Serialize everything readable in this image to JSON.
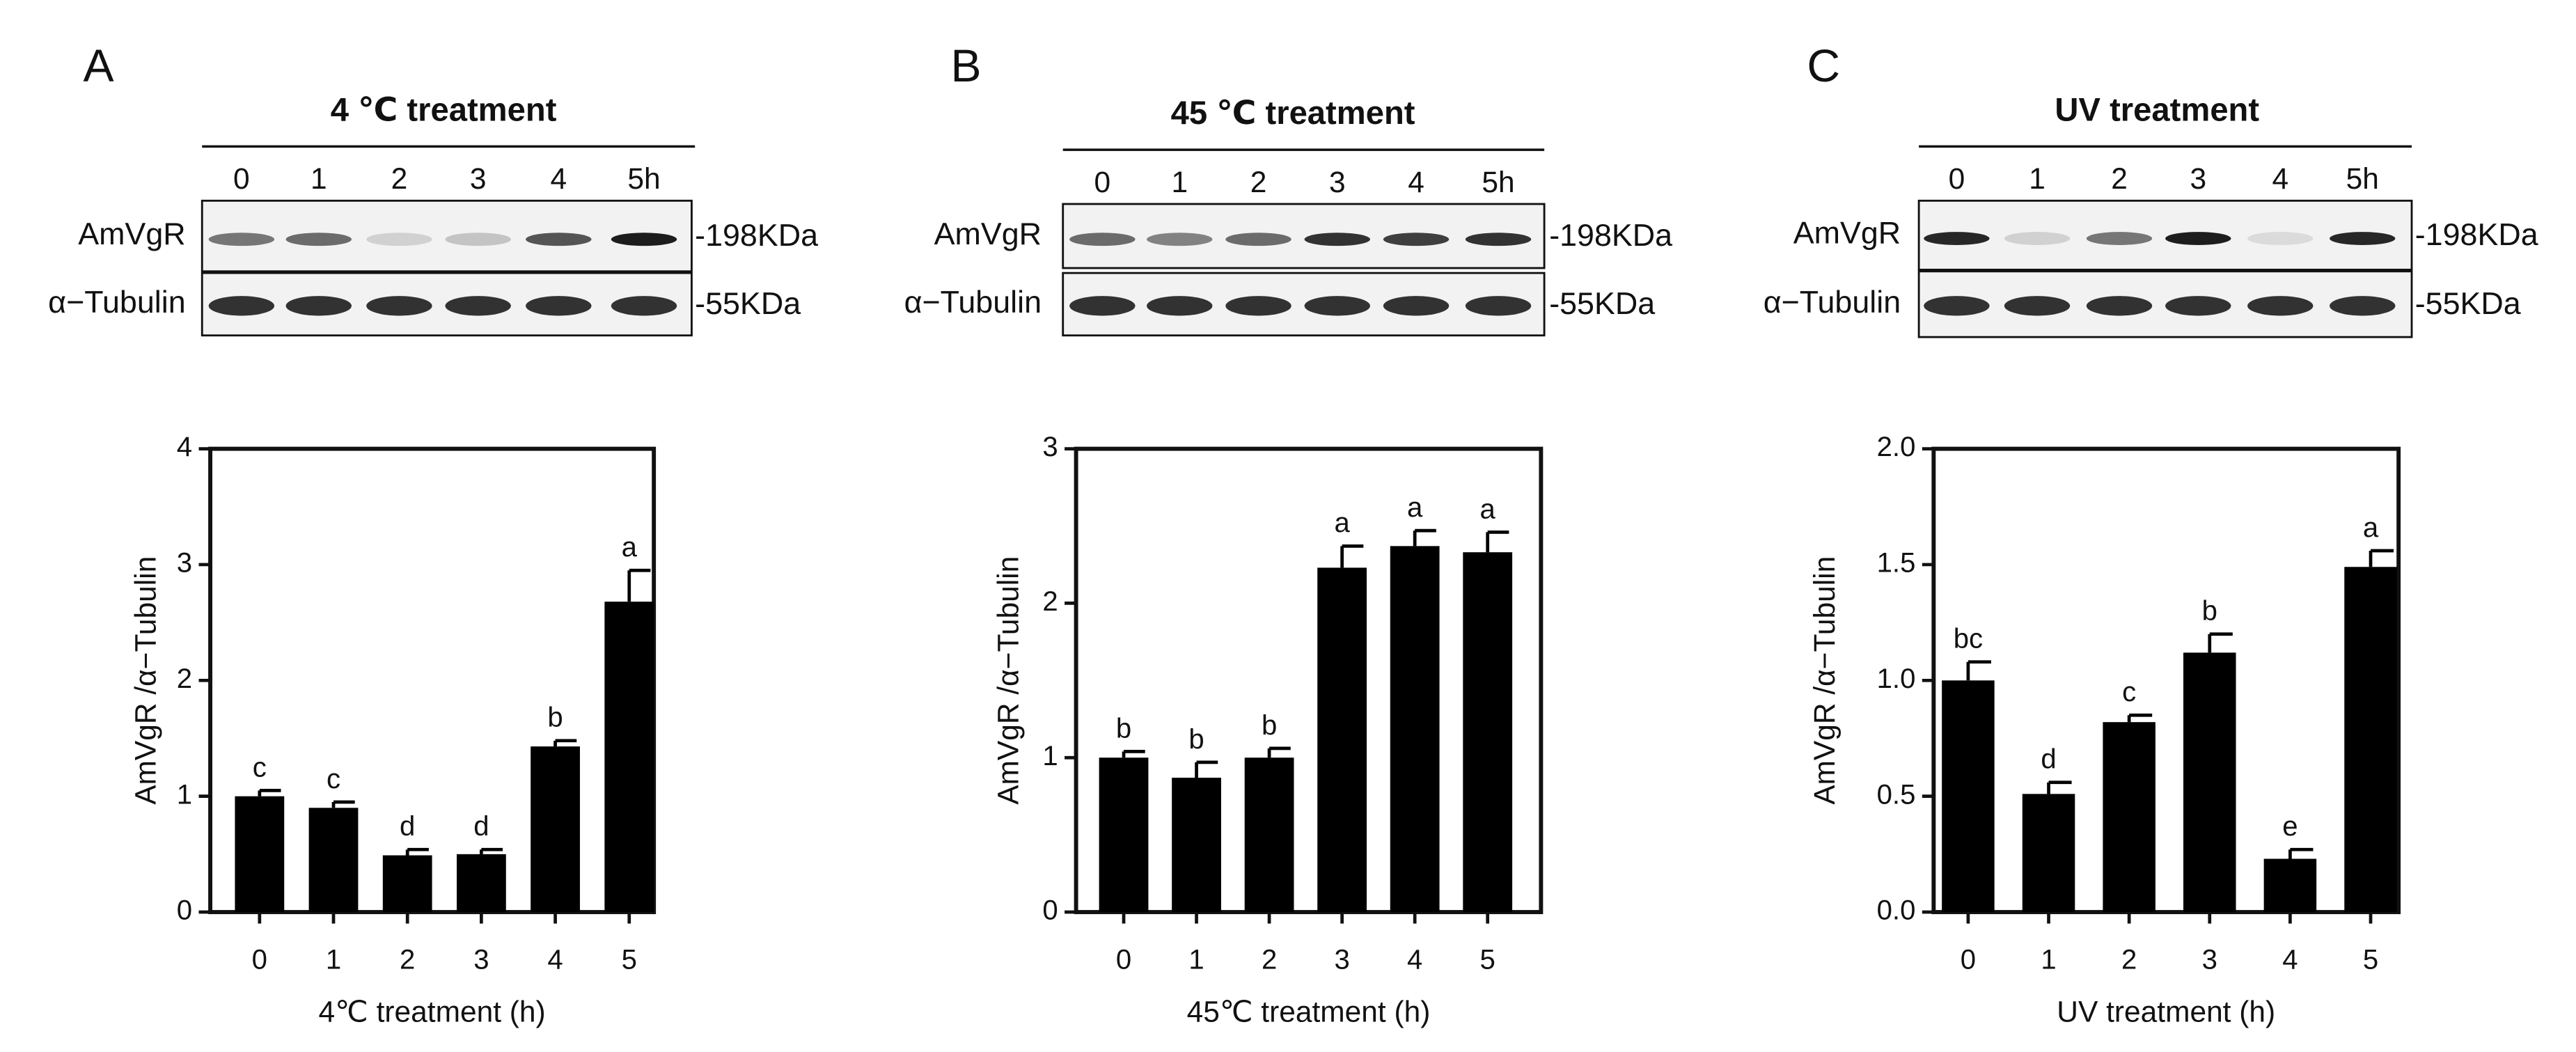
{
  "chart_data": [
    {
      "type": "bar",
      "panel": "A",
      "blot": {
        "title": "4 ℃ treatment",
        "lanes": [
          "0",
          "1",
          "2",
          "3",
          "4",
          "5h"
        ],
        "rows": [
          {
            "label": "AmVgR",
            "size": "-198KDa"
          },
          {
            "label": "α−Tubulin",
            "size": "-55KDa"
          }
        ]
      },
      "categories": [
        "0",
        "1",
        "2",
        "3",
        "4",
        "5"
      ],
      "values": [
        1.0,
        0.9,
        0.49,
        0.5,
        1.43,
        2.68
      ],
      "errors": [
        0.05,
        0.05,
        0.05,
        0.04,
        0.05,
        0.27
      ],
      "letters": [
        "c",
        "c",
        "d",
        "d",
        "b",
        "a"
      ],
      "xlabel": "4℃ treatment (h)",
      "ylabel": "AmVgR /α−Tubulin",
      "ylim": [
        0,
        4
      ],
      "yticks": [
        0,
        1,
        2,
        3,
        4
      ],
      "color": "#000000"
    },
    {
      "type": "bar",
      "panel": "B",
      "blot": {
        "title": "45 ℃ treatment",
        "lanes": [
          "0",
          "1",
          "2",
          "3",
          "4",
          "5h"
        ],
        "rows": [
          {
            "label": "AmVgR",
            "size": "-198KDa"
          },
          {
            "label": "α−Tubulin",
            "size": "-55KDa"
          }
        ]
      },
      "categories": [
        "0",
        "1",
        "2",
        "3",
        "4",
        "5"
      ],
      "values": [
        1.0,
        0.87,
        1.0,
        2.23,
        2.37,
        2.33
      ],
      "errors": [
        0.04,
        0.1,
        0.06,
        0.14,
        0.1,
        0.13
      ],
      "letters": [
        "b",
        "b",
        "b",
        "a",
        "a",
        "a"
      ],
      "xlabel": "45℃ treatment (h)",
      "ylabel": "AmVgR /α−Tubulin",
      "ylim": [
        0,
        3
      ],
      "yticks": [
        0,
        1,
        2,
        3
      ],
      "color": "#000000"
    },
    {
      "type": "bar",
      "panel": "C",
      "blot": {
        "title": "UV  treatment",
        "lanes": [
          "0",
          "1",
          "2",
          "3",
          "4",
          "5h"
        ],
        "rows": [
          {
            "label": "AmVgR",
            "size": "-198KDa"
          },
          {
            "label": "α−Tubulin",
            "size": "-55KDa"
          }
        ]
      },
      "categories": [
        "0",
        "1",
        "2",
        "3",
        "4",
        "5"
      ],
      "values": [
        1.0,
        0.51,
        0.82,
        1.12,
        0.23,
        1.49
      ],
      "errors": [
        0.08,
        0.05,
        0.03,
        0.08,
        0.04,
        0.07
      ],
      "letters": [
        "bc",
        "d",
        "c",
        "b",
        "e",
        "a"
      ],
      "xlabel": "UV treatment (h)",
      "ylabel": "AmVgR /α−Tubulin",
      "ylim": [
        0,
        2
      ],
      "yticks": [
        {
          "value": 0,
          "label": "0.0"
        },
        0.5,
        {
          "value": 1,
          "label": "1.0"
        },
        1.5,
        {
          "value": 2,
          "label": "2.0"
        }
      ],
      "color": "#000000"
    }
  ]
}
